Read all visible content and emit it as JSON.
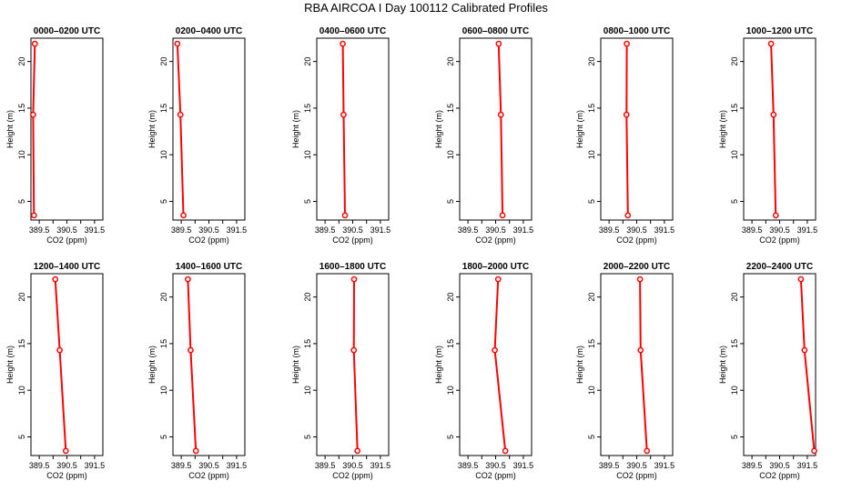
{
  "title": "RBA AIRCOA I  Day 100112  Calibrated Profiles",
  "colors": {
    "profile": "#ff0000",
    "axis": "#000000",
    "background": "#ffffff"
  },
  "chart_data": [
    {
      "type": "line",
      "title": "0000–0200 UTC",
      "xlabel": "CO2 (ppm)",
      "ylabel": "Height (m)",
      "xlim": [
        389.2,
        391.8
      ],
      "ylim": [
        3,
        22.5
      ],
      "xticks": [
        389.5,
        390.5,
        391.5
      ],
      "xtick_labels": [
        "389.5",
        "390.5",
        "391.5"
      ],
      "yticks": [
        5,
        10,
        15,
        20
      ],
      "ytick_labels": [
        "5",
        "10",
        "15",
        "20"
      ],
      "points": [
        {
          "x": 389.31,
          "y": 3.5
        },
        {
          "x": 389.28,
          "y": 14.3
        },
        {
          "x": 389.34,
          "y": 21.9
        }
      ]
    },
    {
      "type": "line",
      "title": "0200–0400 UTC",
      "xlabel": "CO2 (ppm)",
      "ylabel": "Height (m)",
      "xlim": [
        389.2,
        391.8
      ],
      "ylim": [
        3,
        22.5
      ],
      "xticks": [
        389.5,
        390.5,
        391.5
      ],
      "xtick_labels": [
        "389.5",
        "390.5",
        "391.5"
      ],
      "yticks": [
        5,
        10,
        15,
        20
      ],
      "ytick_labels": [
        "5",
        "10",
        "15",
        "20"
      ],
      "points": [
        {
          "x": 389.58,
          "y": 3.5
        },
        {
          "x": 389.47,
          "y": 14.3
        },
        {
          "x": 389.36,
          "y": 21.9
        }
      ]
    },
    {
      "type": "line",
      "title": "0400–0600 UTC",
      "xlabel": "CO2 (ppm)",
      "ylabel": "Height (m)",
      "xlim": [
        389.2,
        391.8
      ],
      "ylim": [
        3,
        22.5
      ],
      "xticks": [
        389.5,
        390.5,
        391.5
      ],
      "xtick_labels": [
        "389.5",
        "390.5",
        "391.5"
      ],
      "yticks": [
        5,
        10,
        15,
        20
      ],
      "ytick_labels": [
        "5",
        "10",
        "15",
        "20"
      ],
      "points": [
        {
          "x": 390.22,
          "y": 3.5
        },
        {
          "x": 390.17,
          "y": 14.3
        },
        {
          "x": 390.14,
          "y": 21.9
        }
      ]
    },
    {
      "type": "line",
      "title": "0600–0800 UTC",
      "xlabel": "CO2 (ppm)",
      "ylabel": "Height (m)",
      "xlim": [
        389.2,
        391.8
      ],
      "ylim": [
        3,
        22.5
      ],
      "xticks": [
        389.5,
        390.5,
        391.5
      ],
      "xtick_labels": [
        "389.5",
        "390.5",
        "391.5"
      ],
      "yticks": [
        5,
        10,
        15,
        20
      ],
      "ytick_labels": [
        "5",
        "10",
        "15",
        "20"
      ],
      "points": [
        {
          "x": 390.75,
          "y": 3.5
        },
        {
          "x": 390.69,
          "y": 14.3
        },
        {
          "x": 390.61,
          "y": 21.9
        }
      ]
    },
    {
      "type": "line",
      "title": "0800–1000 UTC",
      "xlabel": "CO2 (ppm)",
      "ylabel": "Height (m)",
      "xlim": [
        389.2,
        391.8
      ],
      "ylim": [
        3,
        22.5
      ],
      "xticks": [
        389.5,
        390.5,
        391.5
      ],
      "xtick_labels": [
        "389.5",
        "390.5",
        "391.5"
      ],
      "yticks": [
        5,
        10,
        15,
        20
      ],
      "ytick_labels": [
        "5",
        "10",
        "15",
        "20"
      ],
      "points": [
        {
          "x": 390.18,
          "y": 3.5
        },
        {
          "x": 390.13,
          "y": 14.3
        },
        {
          "x": 390.14,
          "y": 21.9
        }
      ]
    },
    {
      "type": "line",
      "title": "1000–1200 UTC",
      "xlabel": "CO2 (ppm)",
      "ylabel": "Height (m)",
      "xlim": [
        389.2,
        391.8
      ],
      "ylim": [
        3,
        22.5
      ],
      "xticks": [
        389.5,
        390.5,
        391.5
      ],
      "xtick_labels": [
        "389.5",
        "390.5",
        "391.5"
      ],
      "yticks": [
        5,
        10,
        15,
        20
      ],
      "ytick_labels": [
        "5",
        "10",
        "15",
        "20"
      ],
      "points": [
        {
          "x": 390.36,
          "y": 3.5
        },
        {
          "x": 390.28,
          "y": 14.3
        },
        {
          "x": 390.19,
          "y": 21.9
        }
      ]
    },
    {
      "type": "line",
      "title": "1200–1400 UTC",
      "xlabel": "CO2 (ppm)",
      "ylabel": "Height (m)",
      "xlim": [
        389.2,
        391.8
      ],
      "ylim": [
        3,
        22.5
      ],
      "xticks": [
        389.5,
        390.5,
        391.5
      ],
      "xtick_labels": [
        "389.5",
        "390.5",
        "391.5"
      ],
      "yticks": [
        5,
        10,
        15,
        20
      ],
      "ytick_labels": [
        "5",
        "10",
        "15",
        "20"
      ],
      "points": [
        {
          "x": 390.46,
          "y": 3.5
        },
        {
          "x": 390.24,
          "y": 14.3
        },
        {
          "x": 390.08,
          "y": 21.9
        }
      ]
    },
    {
      "type": "line",
      "title": "1400–1600 UTC",
      "xlabel": "CO2 (ppm)",
      "ylabel": "Height (m)",
      "xlim": [
        389.2,
        391.8
      ],
      "ylim": [
        3,
        22.5
      ],
      "xticks": [
        389.5,
        390.5,
        391.5
      ],
      "xtick_labels": [
        "389.5",
        "390.5",
        "391.5"
      ],
      "yticks": [
        5,
        10,
        15,
        20
      ],
      "ytick_labels": [
        "5",
        "10",
        "15",
        "20"
      ],
      "points": [
        {
          "x": 390.03,
          "y": 3.5
        },
        {
          "x": 389.84,
          "y": 14.3
        },
        {
          "x": 389.74,
          "y": 21.9
        }
      ]
    },
    {
      "type": "line",
      "title": "1600–1800 UTC",
      "xlabel": "CO2 (ppm)",
      "ylabel": "Height (m)",
      "xlim": [
        389.2,
        391.8
      ],
      "ylim": [
        3,
        22.5
      ],
      "xticks": [
        389.5,
        390.5,
        391.5
      ],
      "xtick_labels": [
        "389.5",
        "390.5",
        "391.5"
      ],
      "yticks": [
        5,
        10,
        15,
        20
      ],
      "ytick_labels": [
        "5",
        "10",
        "15",
        "20"
      ],
      "points": [
        {
          "x": 390.67,
          "y": 3.5
        },
        {
          "x": 390.54,
          "y": 14.3
        },
        {
          "x": 390.55,
          "y": 21.9
        }
      ]
    },
    {
      "type": "line",
      "title": "1800–2000 UTC",
      "xlabel": "CO2 (ppm)",
      "ylabel": "Height (m)",
      "xlim": [
        389.2,
        391.8
      ],
      "ylim": [
        3,
        22.5
      ],
      "xticks": [
        389.5,
        390.5,
        391.5
      ],
      "xtick_labels": [
        "389.5",
        "390.5",
        "391.5"
      ],
      "yticks": [
        5,
        10,
        15,
        20
      ],
      "ytick_labels": [
        "5",
        "10",
        "15",
        "20"
      ],
      "points": [
        {
          "x": 390.85,
          "y": 3.5
        },
        {
          "x": 390.47,
          "y": 14.3
        },
        {
          "x": 390.59,
          "y": 21.9
        }
      ]
    },
    {
      "type": "line",
      "title": "2000–2200 UTC",
      "xlabel": "CO2 (ppm)",
      "ylabel": "Height (m)",
      "xlim": [
        389.2,
        391.8
      ],
      "ylim": [
        3,
        22.5
      ],
      "xticks": [
        389.5,
        390.5,
        391.5
      ],
      "xtick_labels": [
        "389.5",
        "390.5",
        "391.5"
      ],
      "yticks": [
        5,
        10,
        15,
        20
      ],
      "ytick_labels": [
        "5",
        "10",
        "15",
        "20"
      ],
      "points": [
        {
          "x": 390.87,
          "y": 3.5
        },
        {
          "x": 390.64,
          "y": 14.3
        },
        {
          "x": 390.62,
          "y": 21.9
        }
      ]
    },
    {
      "type": "line",
      "title": "2200–2400 UTC",
      "xlabel": "CO2 (ppm)",
      "ylabel": "Height (m)",
      "xlim": [
        389.2,
        391.8
      ],
      "ylim": [
        3,
        22.5
      ],
      "xticks": [
        389.5,
        390.5,
        391.5
      ],
      "xtick_labels": [
        "389.5",
        "390.5",
        "391.5"
      ],
      "yticks": [
        5,
        10,
        15,
        20
      ],
      "ytick_labels": [
        "5",
        "10",
        "15",
        "20"
      ],
      "points": [
        {
          "x": 391.75,
          "y": 3.5
        },
        {
          "x": 391.4,
          "y": 14.3
        },
        {
          "x": 391.27,
          "y": 21.9
        }
      ]
    }
  ]
}
